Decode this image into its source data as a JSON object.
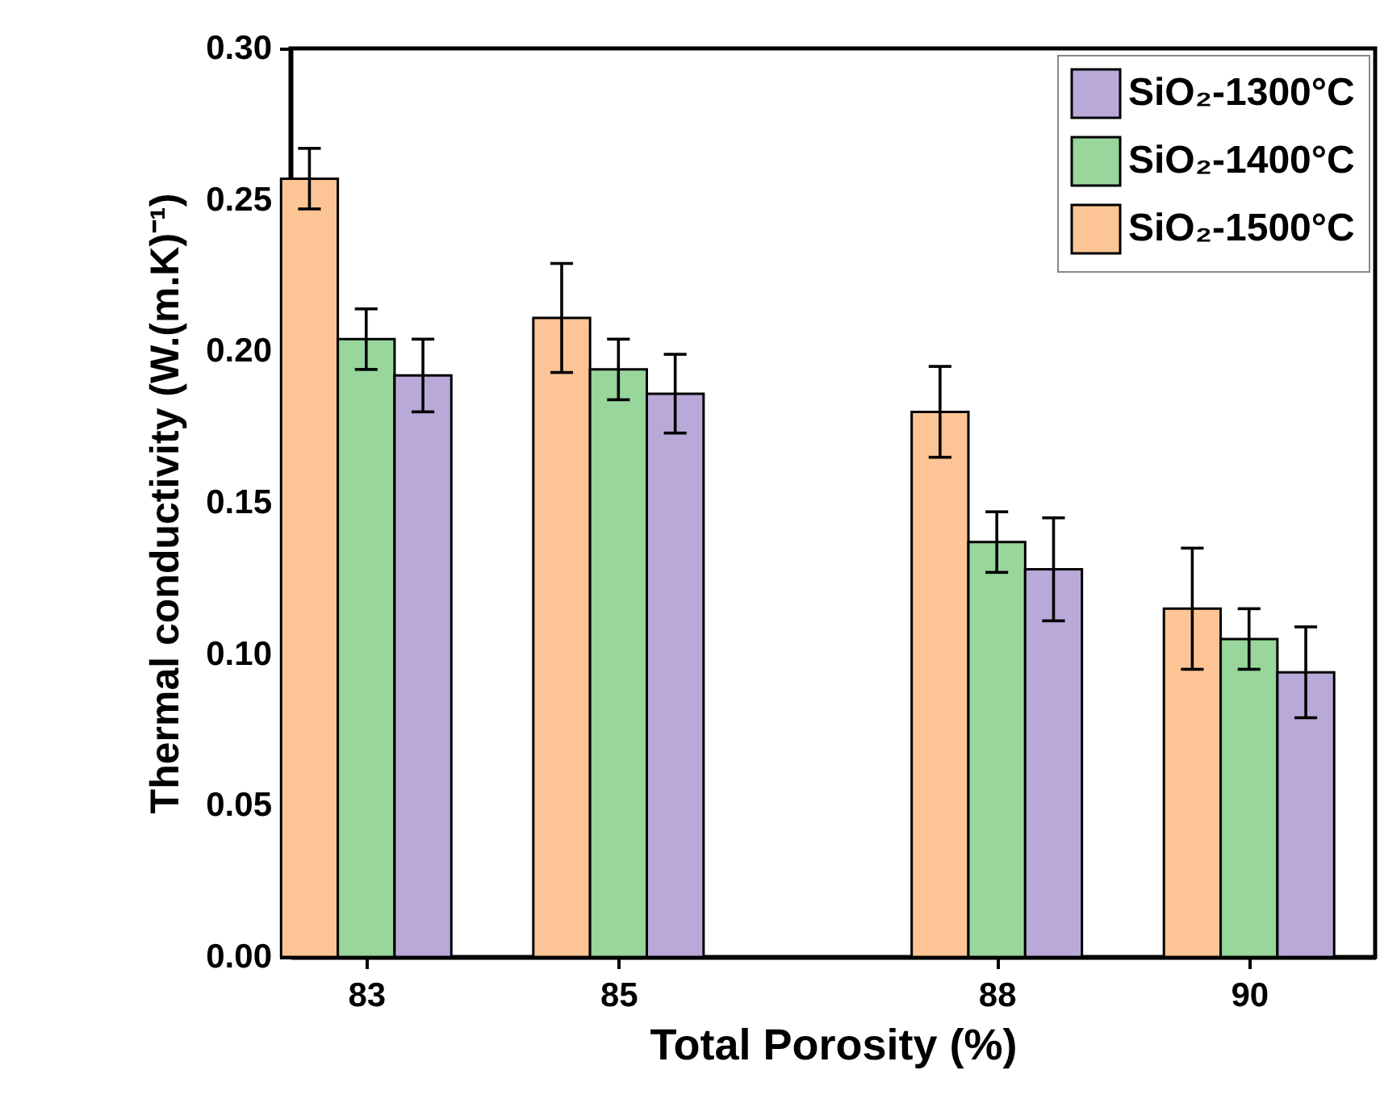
{
  "chart_data": {
    "type": "bar",
    "xlabel": "Total Porosity (%)",
    "ylabel": "Thermal conductivity (W.(m.K)⁻¹)",
    "x": [
      83,
      85,
      88,
      90
    ],
    "xlim": [
      82.4,
      91.0
    ],
    "xticks": [
      83,
      85,
      88,
      90
    ],
    "ylim": [
      0,
      0.3
    ],
    "yticks": [
      {
        "value": 0,
        "label": "0.00"
      },
      {
        "value": 0.05,
        "label": "0.05"
      },
      {
        "value": 0.1,
        "label": "0.10"
      },
      {
        "value": 0.15,
        "label": "0.15"
      },
      {
        "value": 0.2,
        "label": "0.20"
      },
      {
        "value": 0.25,
        "label": "0.25"
      },
      {
        "value": 0.3,
        "label": "0.30"
      }
    ],
    "legend": "top right",
    "series": [
      {
        "name": "SiO₂-1500°C",
        "color": "#fdc596",
        "values": [
          0.257,
          0.211,
          0.18,
          0.115
        ],
        "errors": [
          0.01,
          0.018,
          0.015,
          0.02
        ]
      },
      {
        "name": "SiO₂-1400°C",
        "color": "#98d69c",
        "values": [
          0.204,
          0.194,
          0.137,
          0.105
        ],
        "errors": [
          0.01,
          0.01,
          0.01,
          0.01
        ]
      },
      {
        "name": "SiO₂-1300°C",
        "color": "#b9a9d9",
        "values": [
          0.192,
          0.186,
          0.128,
          0.094
        ],
        "errors": [
          0.012,
          0.013,
          0.017,
          0.015
        ]
      }
    ]
  }
}
